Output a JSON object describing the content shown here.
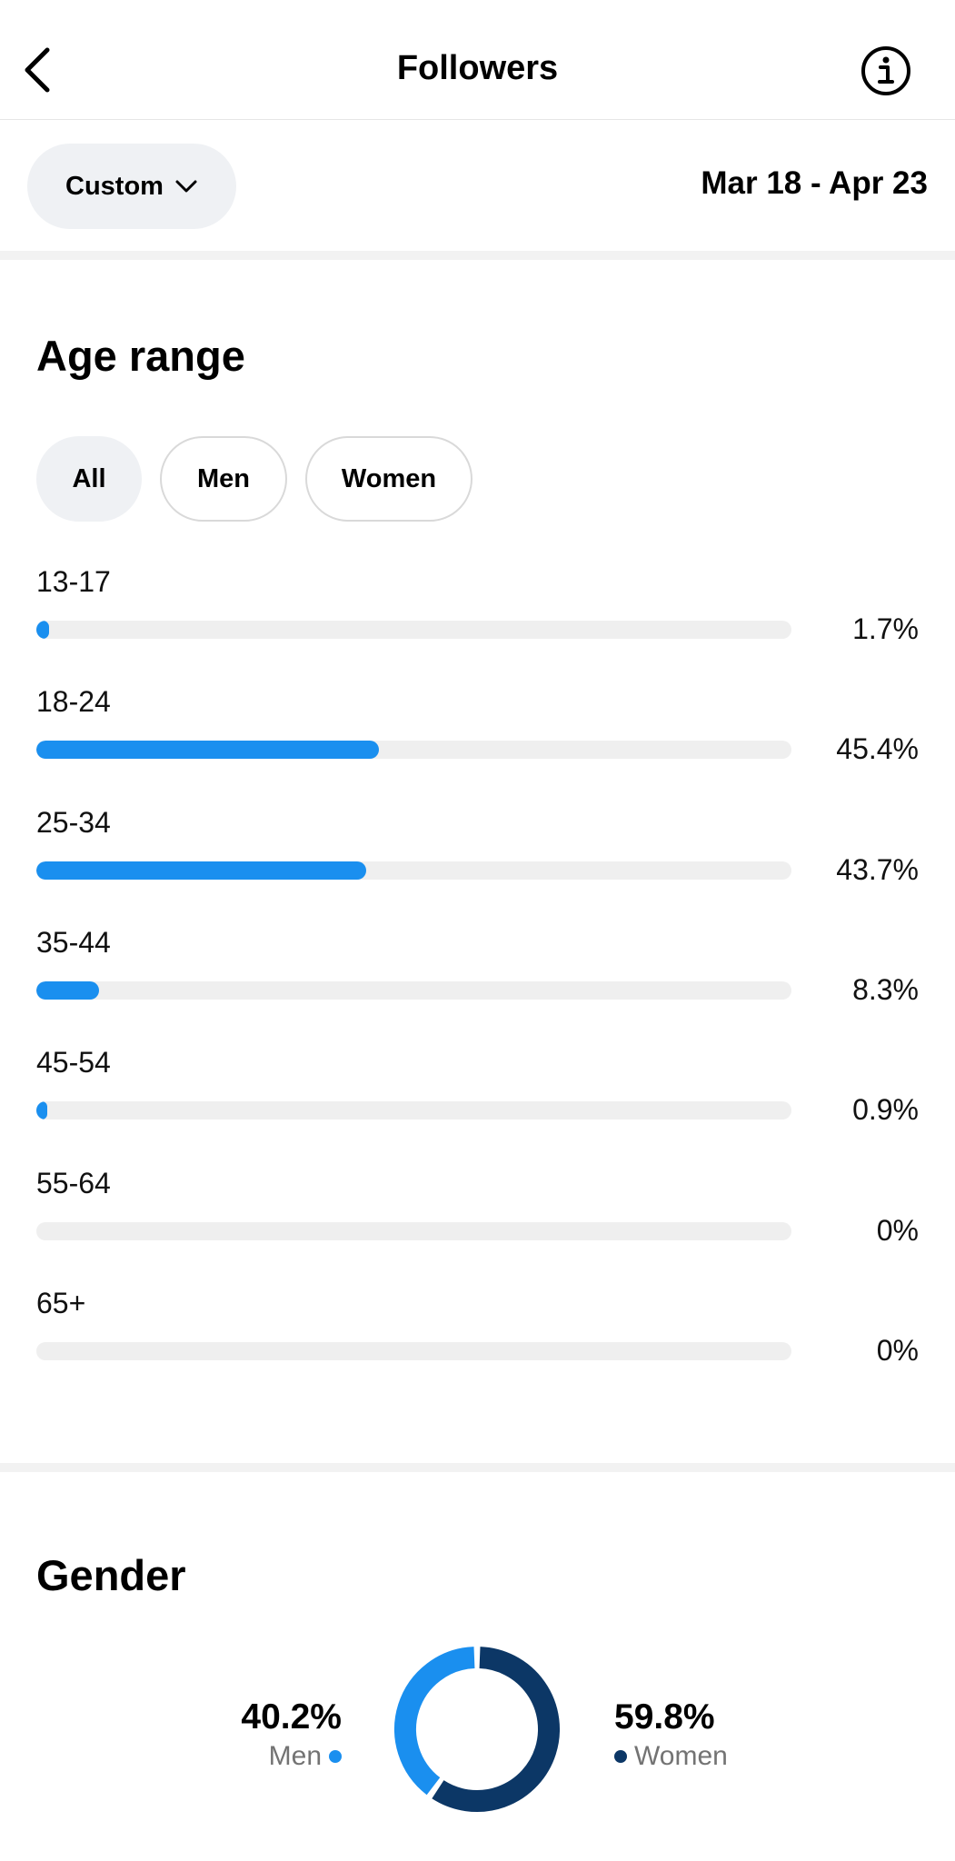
{
  "header": {
    "title": "Followers"
  },
  "filter": {
    "custom_label": "Custom",
    "date_range": "Mar 18 - Apr 23"
  },
  "age": {
    "title": "Age range",
    "chips": [
      "All",
      "Men",
      "Women"
    ],
    "rows": [
      {
        "label": "13-17",
        "value": "1.7%",
        "fill": 1.7
      },
      {
        "label": "18-24",
        "value": "45.4%",
        "fill": 45.4
      },
      {
        "label": "25-34",
        "value": "43.7%",
        "fill": 43.7
      },
      {
        "label": "35-44",
        "value": "8.3%",
        "fill": 8.3
      },
      {
        "label": "45-54",
        "value": "0.9%",
        "fill": 0.9
      },
      {
        "label": "55-64",
        "value": "0%",
        "fill": 0
      },
      {
        "label": "65+",
        "value": "0%",
        "fill": 0
      }
    ]
  },
  "gender": {
    "title": "Gender",
    "men": {
      "pct": "40.2%",
      "label": "Men",
      "value": 40.2
    },
    "women": {
      "pct": "59.8%",
      "label": "Women",
      "value": 59.8
    }
  },
  "colors": {
    "accent": "#1a8fef",
    "women": "#0c3766",
    "track": "#efefef"
  },
  "icons": [
    "back-arrow-icon",
    "info-icon",
    "chevron-down-icon"
  ]
}
